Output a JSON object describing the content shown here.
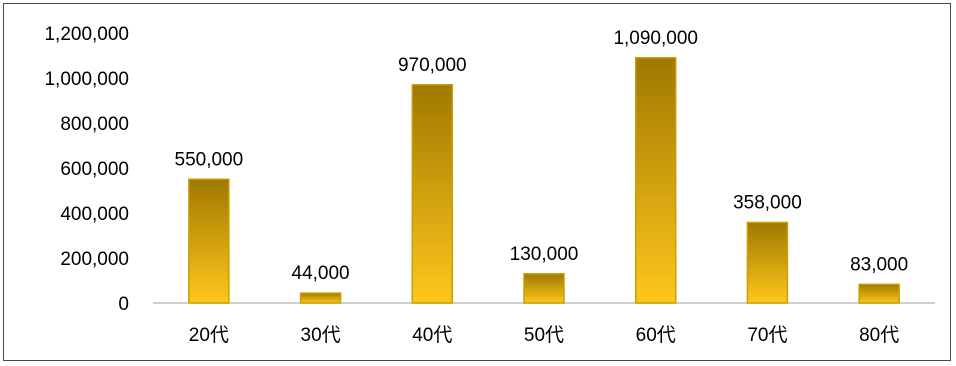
{
  "chart_data": {
    "type": "bar",
    "categories": [
      "20代",
      "30代",
      "40代",
      "50代",
      "60代",
      "70代",
      "80代"
    ],
    "values": [
      550000,
      44000,
      970000,
      130000,
      1090000,
      358000,
      83000
    ],
    "data_labels": [
      "550,000",
      "44,000",
      "970,000",
      "130,000",
      "1,090,000",
      "358,000",
      "83,000"
    ],
    "yticks": [
      0,
      200000,
      400000,
      600000,
      800000,
      1000000,
      1200000
    ],
    "ytick_labels": [
      "0",
      "200,000",
      "400,000",
      "600,000",
      "800,000",
      "1,000,000",
      "1,200,000"
    ],
    "ylim": [
      0,
      1200000
    ],
    "grid": false,
    "legend": "none",
    "title": "",
    "xlabel": "",
    "ylabel": "",
    "colors": {
      "bar_top": "#a07800",
      "bar_bottom": "#ffc71c",
      "bar_border": "#c9a000",
      "axis": "#bfbfbf"
    }
  }
}
